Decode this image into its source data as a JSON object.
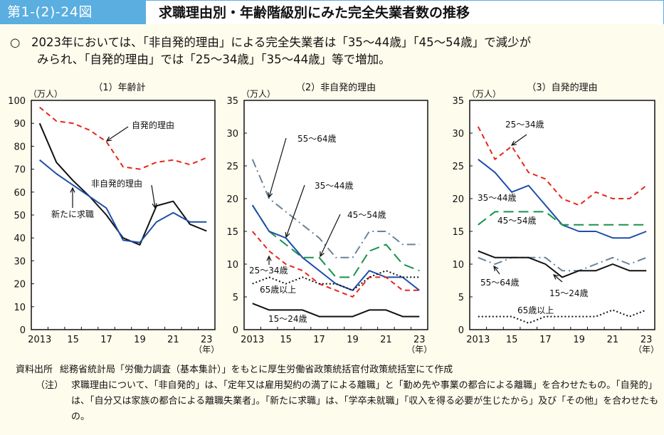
{
  "header": {
    "figure_number": "第1-(2)-24図",
    "title": "求職理由別・年齢階級別にみた完全失業者数の推移"
  },
  "summary": {
    "bullet": "○",
    "line1": "2023年においては、「非自発的理由」による完全失業者は「35～44歳」「45～54歳」で減少が",
    "line2": "みられ、「自発的理由」では「25～34歳」「35～44歳」等で増加。"
  },
  "notes": {
    "source_label": "資料出所",
    "source_text": "総務省統計局「労働力調査（基本集計）」をもとに厚生労働省政策統括官付政策統括室にて作成",
    "note_label": "（注）",
    "note_text": "求職理由について、「非自発的」は、「定年又は雇用契約の満了による離職」と「勤め先や事業の都合による離職」を合わせたもの。「自発的」は、「自分又は家族の都合による離職失業者」。「新たに求職」は、「学卒未就職」「収入を得る必要が生じたから」及び「その他」を合わせたもの。"
  },
  "chart_data": [
    {
      "type": "line",
      "title": "（1）年齢計",
      "ylabel": "（万人）",
      "xlabel": "（年）",
      "ylim": [
        0,
        100
      ],
      "yticks": [
        0,
        10,
        20,
        30,
        40,
        50,
        60,
        70,
        80,
        90,
        100
      ],
      "x": [
        2013,
        2014,
        2015,
        2016,
        2017,
        2018,
        2019,
        2020,
        2021,
        2022,
        2023
      ],
      "xtick_labels": [
        "2013",
        "",
        "15",
        "",
        "17",
        "",
        "19",
        "",
        "21",
        "",
        "23"
      ],
      "grid": false,
      "series": [
        {
          "name": "自発的理由",
          "color": "#e8261c",
          "style": "dashed",
          "values": [
            97,
            91,
            90,
            87,
            82,
            71,
            70,
            73,
            74,
            72,
            75
          ]
        },
        {
          "name": "非自発的理由",
          "color": "#111111",
          "style": "solid",
          "values": [
            90,
            73,
            65,
            58,
            50,
            40,
            37,
            54,
            56,
            46,
            43
          ]
        },
        {
          "name": "新たに求職",
          "color": "#1f4fa8",
          "style": "solid",
          "values": [
            74,
            68,
            63,
            58,
            53,
            39,
            38,
            47,
            51,
            47,
            47
          ]
        }
      ],
      "annotations": [
        {
          "text": "自発的理由",
          "series": "自発的理由"
        },
        {
          "text": "非自発的理由",
          "series": "非自発的理由"
        },
        {
          "text": "新たに求職",
          "series": "新たに求職"
        }
      ]
    },
    {
      "type": "line",
      "title": "（2）非自発的理由",
      "ylabel": "（万人）",
      "xlabel": "（年）",
      "ylim": [
        0,
        35
      ],
      "yticks": [
        0,
        5,
        10,
        15,
        20,
        25,
        30,
        35
      ],
      "x": [
        2013,
        2014,
        2015,
        2016,
        2017,
        2018,
        2019,
        2020,
        2021,
        2022,
        2023
      ],
      "xtick_labels": [
        "2013",
        "",
        "15",
        "",
        "17",
        "",
        "19",
        "",
        "21",
        "",
        "23"
      ],
      "grid": false,
      "series": [
        {
          "name": "55～64歳",
          "color": "#6a8399",
          "style": "dashdot",
          "values": [
            26,
            20,
            18,
            16,
            14,
            11,
            11,
            15,
            15,
            13,
            13
          ]
        },
        {
          "name": "45～54歳",
          "color": "#16934a",
          "style": "longdash",
          "values": [
            19,
            15,
            13,
            11,
            11,
            8,
            8,
            12,
            13,
            10,
            9
          ]
        },
        {
          "name": "35～44歳",
          "color": "#1f4fa8",
          "style": "solid",
          "values": [
            19,
            15,
            14,
            11,
            9,
            7,
            6,
            9,
            8,
            8,
            6
          ]
        },
        {
          "name": "25～34歳",
          "color": "#e8261c",
          "style": "dashed",
          "values": [
            15,
            12,
            10,
            9,
            7,
            6,
            5,
            8,
            8,
            6,
            6
          ]
        },
        {
          "name": "65歳以上",
          "color": "#111111",
          "style": "dotted",
          "values": [
            7,
            8,
            7,
            8,
            7,
            7,
            6,
            8,
            9,
            8,
            8
          ]
        },
        {
          "name": "15～24歳",
          "color": "#111111",
          "style": "solid",
          "values": [
            4,
            3,
            3,
            3,
            2,
            2,
            2,
            3,
            3,
            2,
            2
          ]
        }
      ],
      "annotations": [
        {
          "text": "55～64歳",
          "series": "55～64歳"
        },
        {
          "text": "35～44歳",
          "series": "35～44歳"
        },
        {
          "text": "45～54歳",
          "series": "45～54歳"
        },
        {
          "text": "25～34歳",
          "series": "25～34歳"
        },
        {
          "text": "65歳以上",
          "series": "65歳以上"
        },
        {
          "text": "15～24歳",
          "series": "15～24歳"
        }
      ]
    },
    {
      "type": "line",
      "title": "（3）自発的理由",
      "ylabel": "（万人）",
      "xlabel": "（年）",
      "ylim": [
        0,
        35
      ],
      "yticks": [
        0,
        5,
        10,
        15,
        20,
        25,
        30,
        35
      ],
      "x": [
        2013,
        2014,
        2015,
        2016,
        2017,
        2018,
        2019,
        2020,
        2021,
        2022,
        2023
      ],
      "xtick_labels": [
        "2013",
        "",
        "15",
        "",
        "17",
        "",
        "19",
        "",
        "21",
        "",
        "23"
      ],
      "grid": false,
      "series": [
        {
          "name": "25～34歳",
          "color": "#e8261c",
          "style": "dashed",
          "values": [
            31,
            26,
            28,
            24,
            23,
            20,
            19,
            21,
            20,
            20,
            22
          ]
        },
        {
          "name": "35～44歳",
          "color": "#1f4fa8",
          "style": "solid",
          "values": [
            26,
            24,
            21,
            22,
            19,
            16,
            15,
            15,
            14,
            14,
            15
          ]
        },
        {
          "name": "45～54歳",
          "color": "#16934a",
          "style": "longdash",
          "values": [
            16,
            18,
            18,
            18,
            18,
            16,
            16,
            16,
            16,
            16,
            16
          ]
        },
        {
          "name": "55～64歳",
          "color": "#6a8399",
          "style": "dashdot",
          "values": [
            11,
            10,
            11,
            11,
            11,
            9,
            9,
            10,
            11,
            10,
            11
          ]
        },
        {
          "name": "15～24歳",
          "color": "#111111",
          "style": "solid",
          "values": [
            12,
            11,
            11,
            11,
            10,
            8,
            9,
            9,
            10,
            9,
            9
          ]
        },
        {
          "name": "65歳以上",
          "color": "#111111",
          "style": "dotted",
          "values": [
            2,
            2,
            2,
            1,
            2,
            2,
            2,
            2,
            3,
            2,
            3
          ]
        }
      ],
      "annotations": [
        {
          "text": "25～34歳",
          "series": "25～34歳"
        },
        {
          "text": "35～44歳",
          "series": "35～44歳"
        },
        {
          "text": "45～54歳",
          "series": "45～54歳"
        },
        {
          "text": "55～64歳",
          "series": "55～64歳"
        },
        {
          "text": "15～24歳",
          "series": "15～24歳"
        },
        {
          "text": "65歳以上",
          "series": "65歳以上"
        }
      ]
    }
  ]
}
